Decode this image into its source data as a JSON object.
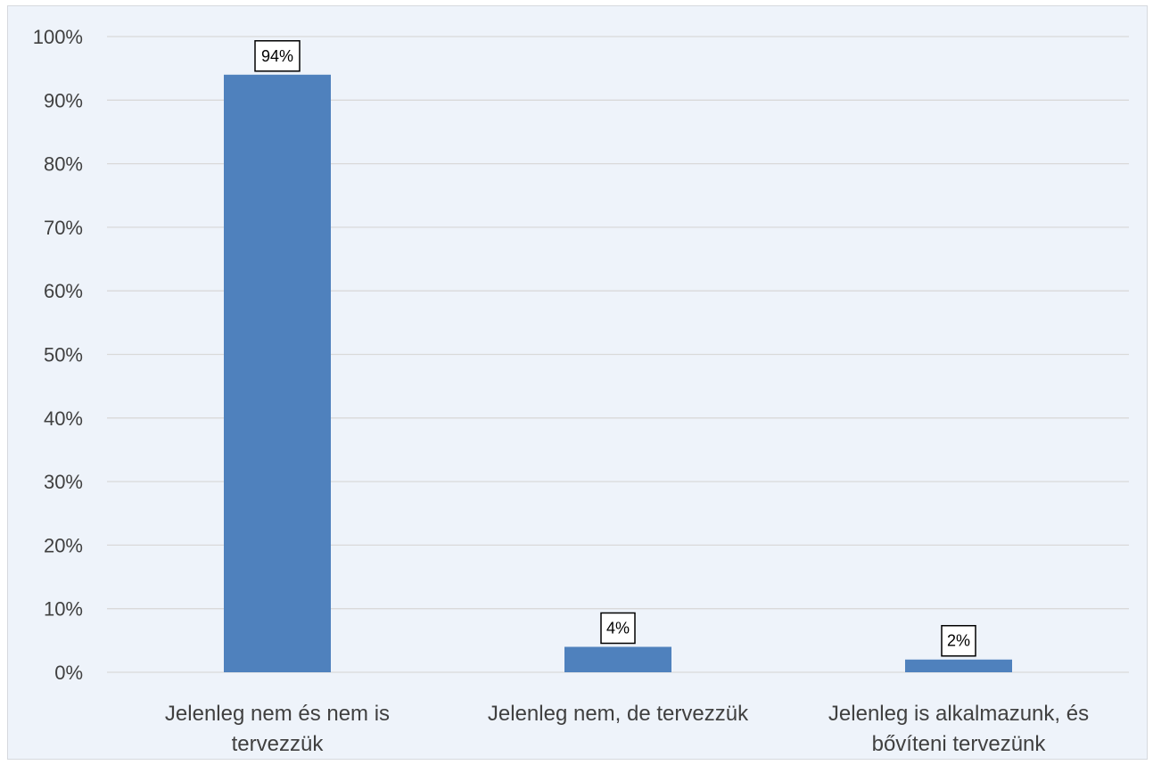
{
  "chart_data": {
    "type": "bar",
    "title": "",
    "xlabel": "",
    "ylabel": "",
    "categories": [
      [
        "Jelenleg nem és nem is",
        "tervezzük"
      ],
      [
        "Jelenleg nem, de tervezzük"
      ],
      [
        "Jelenleg is alkalmazunk, és",
        "bővíteni tervezünk"
      ]
    ],
    "values": [
      94,
      4,
      2
    ],
    "data_labels": [
      "94%",
      "4%",
      "2%"
    ],
    "ylim": [
      0,
      100
    ],
    "yticks": [
      0,
      10,
      20,
      30,
      40,
      50,
      60,
      70,
      80,
      90,
      100
    ],
    "ytick_labels": [
      "0%",
      "10%",
      "20%",
      "30%",
      "40%",
      "50%",
      "60%",
      "70%",
      "80%",
      "90%",
      "100%"
    ],
    "grid": true,
    "legend": "none",
    "bar_color": "#4f81bd",
    "background_color": "#eef3fa",
    "gridline_color": "#d9d9d9"
  }
}
